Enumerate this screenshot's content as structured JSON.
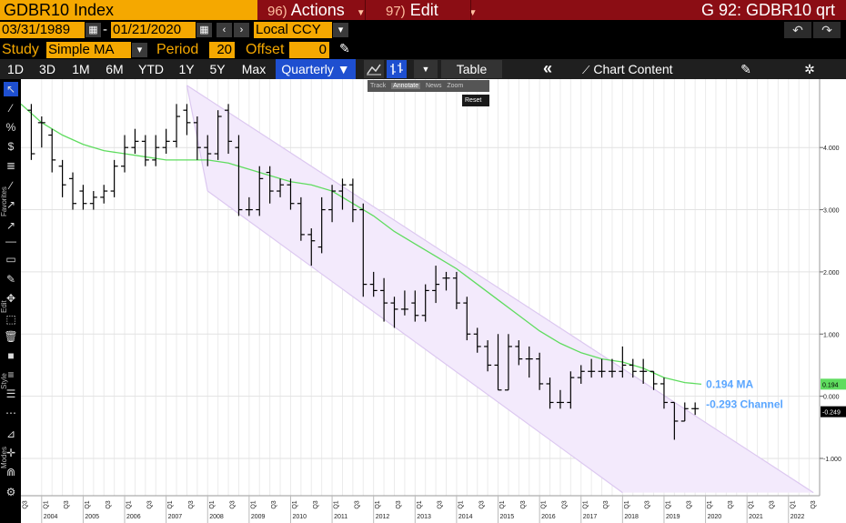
{
  "header": {
    "ticker": "GDBR10 Index",
    "actions": {
      "num": "96)",
      "label": "Actions"
    },
    "edit": {
      "num": "97)",
      "label": "Edit"
    },
    "title": "G 92: GDBR10 qrt"
  },
  "dates": {
    "start": "03/31/1989",
    "end": "01/21/2020",
    "currency": "Local CCY"
  },
  "study": {
    "label": "Study",
    "type": "Simple MA",
    "period_label": "Period",
    "period": "20",
    "offset_label": "Offset",
    "offset": "0"
  },
  "toolbar": {
    "ranges": [
      "1D",
      "3D",
      "1M",
      "6M",
      "YTD",
      "1Y",
      "5Y",
      "Max"
    ],
    "frequency": "Quarterly ▼",
    "table": "Table",
    "collapse": "«",
    "chart_content": "Chart Content"
  },
  "popup": {
    "track": "Track",
    "annotate": "Annotate",
    "news": "News",
    "zoom": "Zoom",
    "reset": "Reset"
  },
  "side_labels": {
    "favorites": "Favorites",
    "edit": "Edit",
    "style": "Style",
    "modes": "Modes"
  },
  "chart_data": {
    "type": "line",
    "y_ticks": [
      "4.000",
      "3.000",
      "2.000",
      "1.000",
      "0.000",
      "-1.000"
    ],
    "y_tick_values": [
      4,
      3,
      2,
      1,
      0,
      -1
    ],
    "ylim": [
      -1.6,
      5.1
    ],
    "x_years": [
      "2004",
      "2005",
      "2006",
      "2007",
      "2008",
      "2009",
      "2010",
      "2011",
      "2012",
      "2013",
      "2014",
      "2015",
      "2016",
      "2017",
      "2018",
      "2019",
      "2020",
      "2021",
      "2022"
    ],
    "x_quarter_labels": [
      "Q3",
      "Q1",
      "Q3"
    ],
    "grid": true,
    "annotations": {
      "ma_label": "0.194 MA",
      "channel_label": "-0.293 Channel",
      "ma_badge": "0.194",
      "last_badge": "-0.249"
    },
    "colors": {
      "ma": "#5fdc5f",
      "channel": "#dcc8f0",
      "channel_fill": "#f3eafc",
      "bars": "#000000",
      "label": "#5aa6ff"
    },
    "series": [
      {
        "name": "GDBR10 Index",
        "x": [
          2003.75,
          2004.0,
          2004.25,
          2004.5,
          2004.75,
          2005.0,
          2005.25,
          2005.5,
          2005.75,
          2006.0,
          2006.25,
          2006.5,
          2006.75,
          2007.0,
          2007.25,
          2007.5,
          2007.75,
          2008.0,
          2008.25,
          2008.5,
          2008.75,
          2009.0,
          2009.25,
          2009.5,
          2009.75,
          2010.0,
          2010.25,
          2010.5,
          2010.75,
          2011.0,
          2011.25,
          2011.5,
          2011.75,
          2012.0,
          2012.25,
          2012.5,
          2012.75,
          2013.0,
          2013.25,
          2013.5,
          2013.75,
          2014.0,
          2014.25,
          2014.5,
          2014.75,
          2015.0,
          2015.25,
          2015.5,
          2015.75,
          2016.0,
          2016.25,
          2016.5,
          2016.75,
          2017.0,
          2017.25,
          2017.5,
          2017.75,
          2018.0,
          2018.25,
          2018.5,
          2018.75,
          2019.0,
          2019.25,
          2019.5,
          2019.75
        ],
        "open": [
          4.6,
          4.4,
          4.2,
          3.7,
          3.5,
          3.3,
          3.1,
          3.2,
          3.3,
          3.7,
          4.0,
          4.1,
          3.8,
          4.0,
          4.1,
          4.6,
          4.4,
          4.0,
          3.9,
          4.6,
          4.0,
          3.0,
          3.0,
          3.6,
          3.3,
          3.4,
          3.1,
          2.6,
          2.4,
          3.0,
          3.3,
          3.4,
          3.0,
          1.8,
          1.7,
          1.5,
          1.4,
          1.5,
          1.3,
          1.7,
          1.9,
          1.9,
          1.5,
          1.0,
          0.8,
          0.5,
          0.1,
          0.8,
          0.6,
          0.6,
          0.2,
          -0.1,
          -0.1,
          0.3,
          0.4,
          0.4,
          0.4,
          0.4,
          0.5,
          0.4,
          0.4,
          0.2,
          -0.1,
          -0.4,
          -0.2
        ],
        "close": [
          3.9,
          4.4,
          3.8,
          3.4,
          3.1,
          3.1,
          3.2,
          3.3,
          3.7,
          4.0,
          4.1,
          3.8,
          4.0,
          4.1,
          4.5,
          4.4,
          4.0,
          3.9,
          4.5,
          4.1,
          3.0,
          3.0,
          3.5,
          3.3,
          3.4,
          3.1,
          2.6,
          2.5,
          3.0,
          3.3,
          3.4,
          3.0,
          1.8,
          1.7,
          1.5,
          1.4,
          1.4,
          1.3,
          1.7,
          1.8,
          1.9,
          1.5,
          1.0,
          0.8,
          0.5,
          0.1,
          0.8,
          0.6,
          0.6,
          0.2,
          -0.1,
          -0.1,
          0.3,
          0.4,
          0.4,
          0.4,
          0.4,
          0.5,
          0.4,
          0.4,
          0.2,
          -0.1,
          -0.4,
          -0.2,
          -0.2
        ],
        "high": [
          4.7,
          4.5,
          4.3,
          3.8,
          3.6,
          3.4,
          3.3,
          3.4,
          3.8,
          4.2,
          4.3,
          4.2,
          4.2,
          4.3,
          4.7,
          4.7,
          4.5,
          4.2,
          4.6,
          4.7,
          4.2,
          3.2,
          3.7,
          3.7,
          3.5,
          3.5,
          3.2,
          2.7,
          3.2,
          3.4,
          3.5,
          3.5,
          3.1,
          2.0,
          1.9,
          1.6,
          1.7,
          1.7,
          1.8,
          2.1,
          2.0,
          2.0,
          1.6,
          1.1,
          0.9,
          1.0,
          1.0,
          0.9,
          0.8,
          0.7,
          0.3,
          0.1,
          0.4,
          0.5,
          0.6,
          0.6,
          0.6,
          0.8,
          0.6,
          0.6,
          0.4,
          0.3,
          -0.1,
          -0.1,
          -0.1
        ],
        "low": [
          3.8,
          4.0,
          3.6,
          3.2,
          3.0,
          3.0,
          3.0,
          3.1,
          3.2,
          3.6,
          3.9,
          3.7,
          3.7,
          3.9,
          4.0,
          4.2,
          3.8,
          3.7,
          3.8,
          3.9,
          2.9,
          2.9,
          2.9,
          3.1,
          3.2,
          3.0,
          2.5,
          2.1,
          2.3,
          2.8,
          3.0,
          2.8,
          1.6,
          1.6,
          1.2,
          1.1,
          1.3,
          1.2,
          1.2,
          1.5,
          1.7,
          1.4,
          0.9,
          0.7,
          0.4,
          0.1,
          0.1,
          0.5,
          0.3,
          0.1,
          -0.2,
          -0.2,
          -0.2,
          0.2,
          0.3,
          0.3,
          0.3,
          0.3,
          0.3,
          0.2,
          0.1,
          -0.2,
          -0.7,
          -0.4,
          -0.3
        ]
      },
      {
        "name": "MA",
        "x": [
          2003.5,
          2004.0,
          2004.5,
          2005.0,
          2005.5,
          2006.0,
          2006.5,
          2007.0,
          2007.5,
          2008.0,
          2008.5,
          2009.0,
          2009.5,
          2010.0,
          2010.5,
          2011.0,
          2011.5,
          2012.0,
          2012.5,
          2013.0,
          2013.5,
          2014.0,
          2014.5,
          2015.0,
          2015.5,
          2016.0,
          2016.5,
          2017.0,
          2017.5,
          2018.0,
          2018.5,
          2019.0,
          2019.5,
          2019.9
        ],
        "values": [
          4.7,
          4.4,
          4.2,
          4.05,
          3.95,
          3.9,
          3.85,
          3.8,
          3.8,
          3.8,
          3.75,
          3.65,
          3.55,
          3.45,
          3.4,
          3.3,
          3.1,
          2.9,
          2.65,
          2.45,
          2.25,
          2.05,
          1.8,
          1.55,
          1.3,
          1.05,
          0.85,
          0.7,
          0.6,
          0.55,
          0.45,
          0.3,
          0.22,
          0.194
        ]
      }
    ],
    "channel": {
      "upper": [
        [
          2007.5,
          5.0
        ],
        [
          2022.6,
          -1.55
        ]
      ],
      "lower": [
        [
          2008.0,
          3.3
        ],
        [
          2018.0,
          -1.55
        ]
      ]
    }
  }
}
